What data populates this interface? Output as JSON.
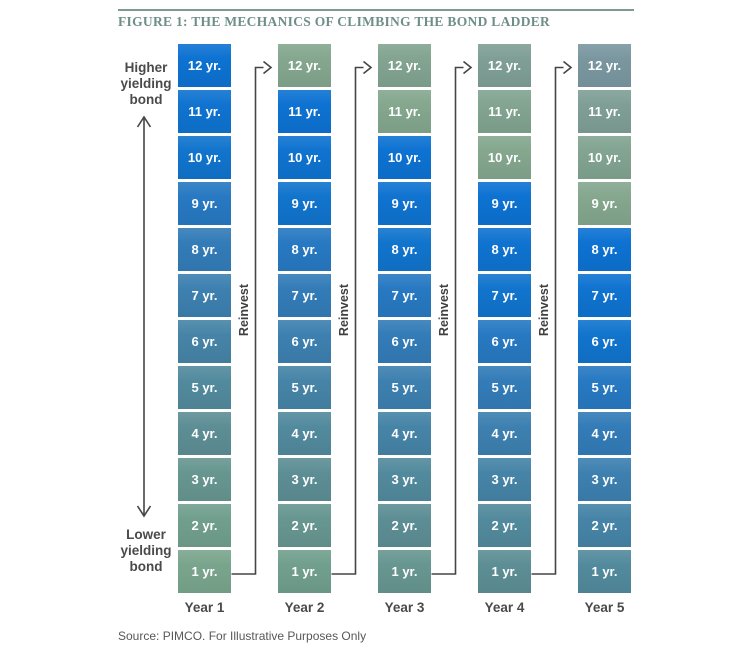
{
  "title": {
    "text": "FIGURE 1: THE MECHANICS OF CLIMBING THE BOND LADDER"
  },
  "source_note": "Source: PIMCO. For Illustrative Purposes Only",
  "side_labels": {
    "higher": [
      "Higher",
      "yielding",
      "bond"
    ],
    "lower": [
      "Lower",
      "yielding",
      "bond"
    ]
  },
  "reinvest_label": "Reinvest",
  "ladder": {
    "maturity_labels": [
      "12 yr.",
      "11 yr.",
      "10 yr.",
      "9 yr.",
      "8 yr.",
      "7 yr.",
      "6 yr.",
      "5 yr.",
      "4 yr.",
      "3 yr.",
      "2 yr.",
      "1 yr."
    ],
    "columns": [
      {
        "year_label": "Year 1",
        "cell_colors": [
          "#0d72d2",
          "#0f73d0",
          "#1174cd",
          "#2779c2",
          "#337cb8",
          "#3d80b0",
          "#4684a7",
          "#528a9d",
          "#5d8e95",
          "#679690",
          "#719f8e",
          "#7aa58d"
        ]
      },
      {
        "year_label": "Year 2",
        "cell_colors": [
          "#84a78e",
          "#0d72d2",
          "#0f73d0",
          "#1174cd",
          "#2779c2",
          "#337cb8",
          "#3d80b0",
          "#4684a7",
          "#528a9d",
          "#5d8e95",
          "#679690",
          "#719f8e"
        ]
      },
      {
        "year_label": "Year 3",
        "cell_colors": [
          "#82a491",
          "#84a78e",
          "#0d72d2",
          "#0f73d0",
          "#1174cd",
          "#2779c2",
          "#337cb8",
          "#3d80b0",
          "#4684a7",
          "#528a9d",
          "#5d8e95",
          "#679690"
        ]
      },
      {
        "year_label": "Year 4",
        "cell_colors": [
          "#7f9f96",
          "#82a491",
          "#84a78e",
          "#0d72d2",
          "#0f73d0",
          "#1174cd",
          "#2779c2",
          "#337cb8",
          "#3d80b0",
          "#4684a7",
          "#528a9d",
          "#5d8e95"
        ]
      },
      {
        "year_label": "Year 5",
        "cell_colors": [
          "#7a97a0",
          "#7f9f96",
          "#82a491",
          "#84a78e",
          "#0d72d2",
          "#0f73d0",
          "#1174cd",
          "#2779c2",
          "#337cb8",
          "#3d80b0",
          "#4684a7",
          "#528a9d"
        ]
      }
    ]
  },
  "colors": {
    "title_text": "#6f8e88",
    "title_rule": "#7f9a94",
    "arrow_stroke": "#454545",
    "cell_text": "#ffffff"
  }
}
